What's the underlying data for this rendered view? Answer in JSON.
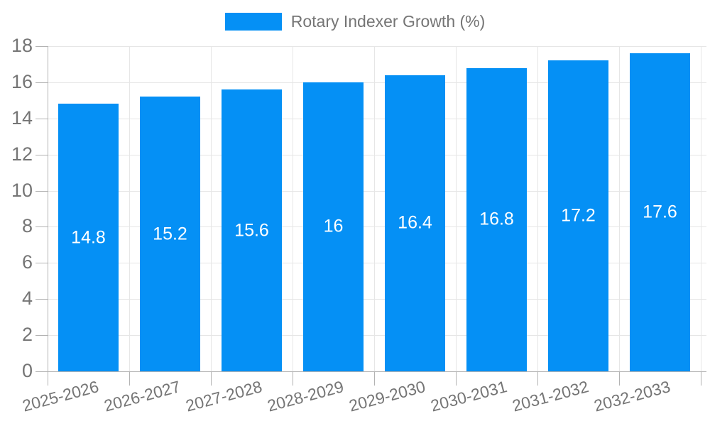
{
  "chart_data": {
    "type": "bar",
    "title": "",
    "legend": "Rotary Indexer Growth (%)",
    "legend_position": "top",
    "categories": [
      "2025-2026",
      "2026-2027",
      "2027-2028",
      "2028-2029",
      "2029-2030",
      "2030-2031",
      "2031-2032",
      "2032-2033"
    ],
    "values": [
      14.8,
      15.2,
      15.6,
      16,
      16.4,
      16.8,
      17.2,
      17.6
    ],
    "value_labels": [
      "14.8",
      "15.2",
      "15.6",
      "16",
      "16.4",
      "16.8",
      "17.2",
      "17.6"
    ],
    "xlabel": "",
    "ylabel": "",
    "ylim": [
      0,
      18
    ],
    "ytick_step": 2,
    "ytick_labels": [
      "0",
      "2",
      "4",
      "6",
      "8",
      "10",
      "12",
      "14",
      "16",
      "18"
    ],
    "grid": true,
    "colors": {
      "bar": "#0590f5",
      "grid": "#e6e6e6",
      "axis": "#b3b3b3",
      "text": "#757575",
      "value_text": "#ffffff",
      "background": "#ffffff"
    }
  }
}
